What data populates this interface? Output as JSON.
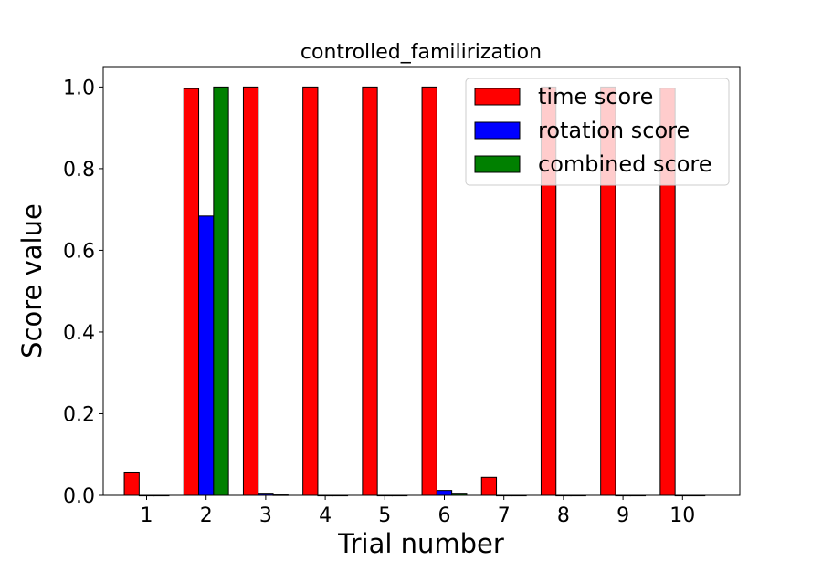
{
  "chart_data": {
    "type": "bar",
    "title": "controlled_familirization",
    "xlabel": "Trial number",
    "ylabel": "Score value",
    "categories": [
      "1",
      "2",
      "3",
      "4",
      "5",
      "6",
      "7",
      "8",
      "9",
      "10"
    ],
    "ylim": [
      0,
      1.05
    ],
    "yticks": [
      "0.0",
      "0.2",
      "0.4",
      "0.6",
      "0.8",
      "1.0"
    ],
    "series": [
      {
        "name": "time score",
        "color": "#ff0000",
        "values": [
          0.057,
          0.996,
          1.0,
          1.0,
          1.0,
          1.0,
          0.044,
          1.0,
          1.0,
          0.997
        ]
      },
      {
        "name": "rotation score",
        "color": "#0000ff",
        "values": [
          0.0,
          0.684,
          0.003,
          0.0,
          0.0,
          0.012,
          0.0,
          0.0,
          0.0,
          0.0
        ]
      },
      {
        "name": "combined score",
        "color": "#008000",
        "values": [
          0.0,
          1.0,
          0.001,
          0.0,
          0.0,
          0.003,
          0.0,
          0.0,
          0.0,
          0.0
        ]
      }
    ],
    "grid": false,
    "legend_position": "top-right"
  }
}
